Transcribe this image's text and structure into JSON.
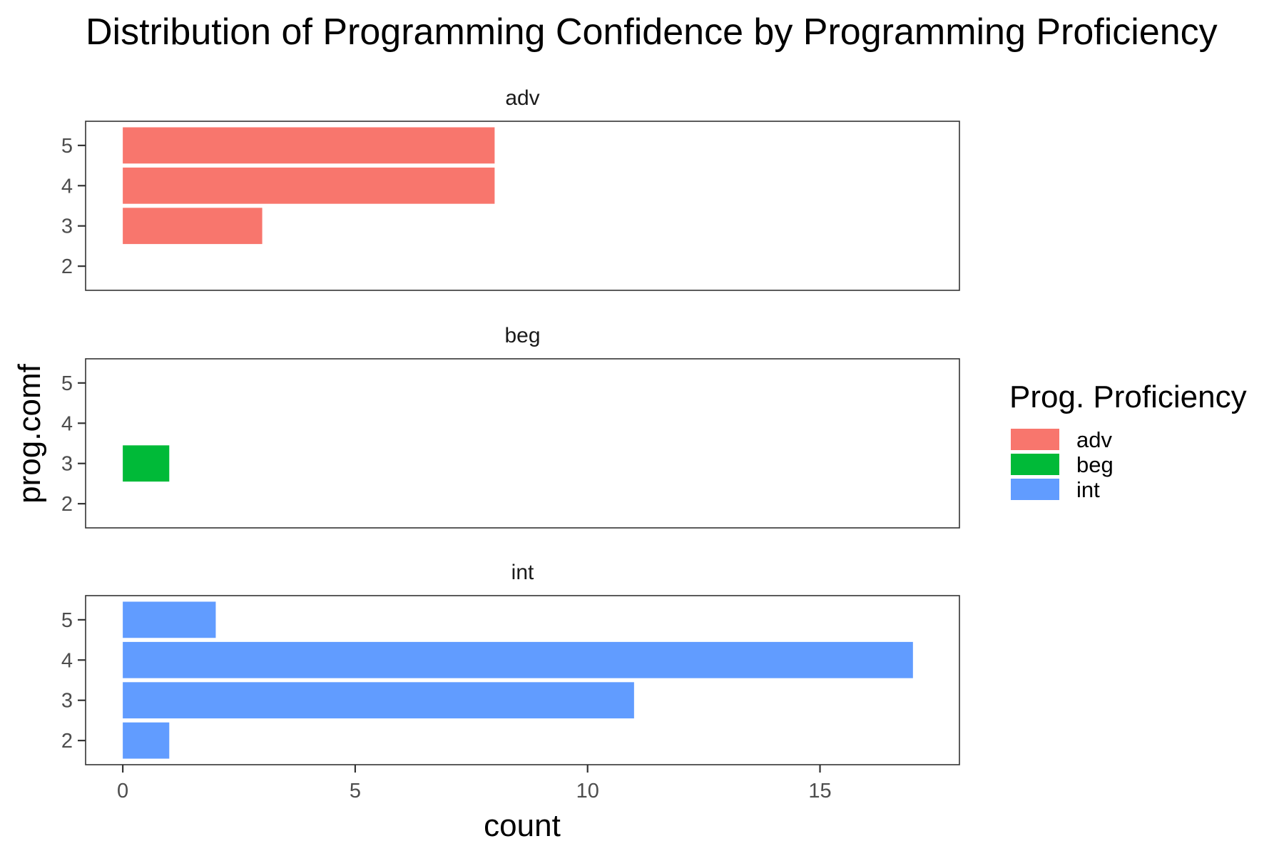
{
  "chart_data": {
    "type": "bar",
    "orientation": "horizontal",
    "title": "Distribution of Programming Confidence by Programming Proficiency",
    "xlabel": "count",
    "ylabel": "prog.comf",
    "xlim": [
      -0.8,
      18
    ],
    "x_ticks": [
      0,
      5,
      10,
      15
    ],
    "x_tick_labels": [
      "0",
      "5",
      "10",
      "15"
    ],
    "y_categories": [
      2,
      3,
      4,
      5
    ],
    "y_tick_labels": [
      "2",
      "3",
      "4",
      "5"
    ],
    "grid": false,
    "legend": {
      "title": "Prog. Proficiency",
      "placement": "right",
      "entries": [
        "adv",
        "beg",
        "int"
      ]
    },
    "colors": {
      "adv": "#F8766D",
      "beg": "#00BA38",
      "int": "#619CFF"
    },
    "panels": [
      {
        "label": "adv",
        "values": [
          {
            "y": 3,
            "count": 3
          },
          {
            "y": 4,
            "count": 8
          },
          {
            "y": 5,
            "count": 8
          }
        ]
      },
      {
        "label": "beg",
        "values": [
          {
            "y": 3,
            "count": 1
          }
        ]
      },
      {
        "label": "int",
        "values": [
          {
            "y": 2,
            "count": 1
          },
          {
            "y": 3,
            "count": 11
          },
          {
            "y": 4,
            "count": 17
          },
          {
            "y": 5,
            "count": 2
          }
        ]
      }
    ]
  }
}
